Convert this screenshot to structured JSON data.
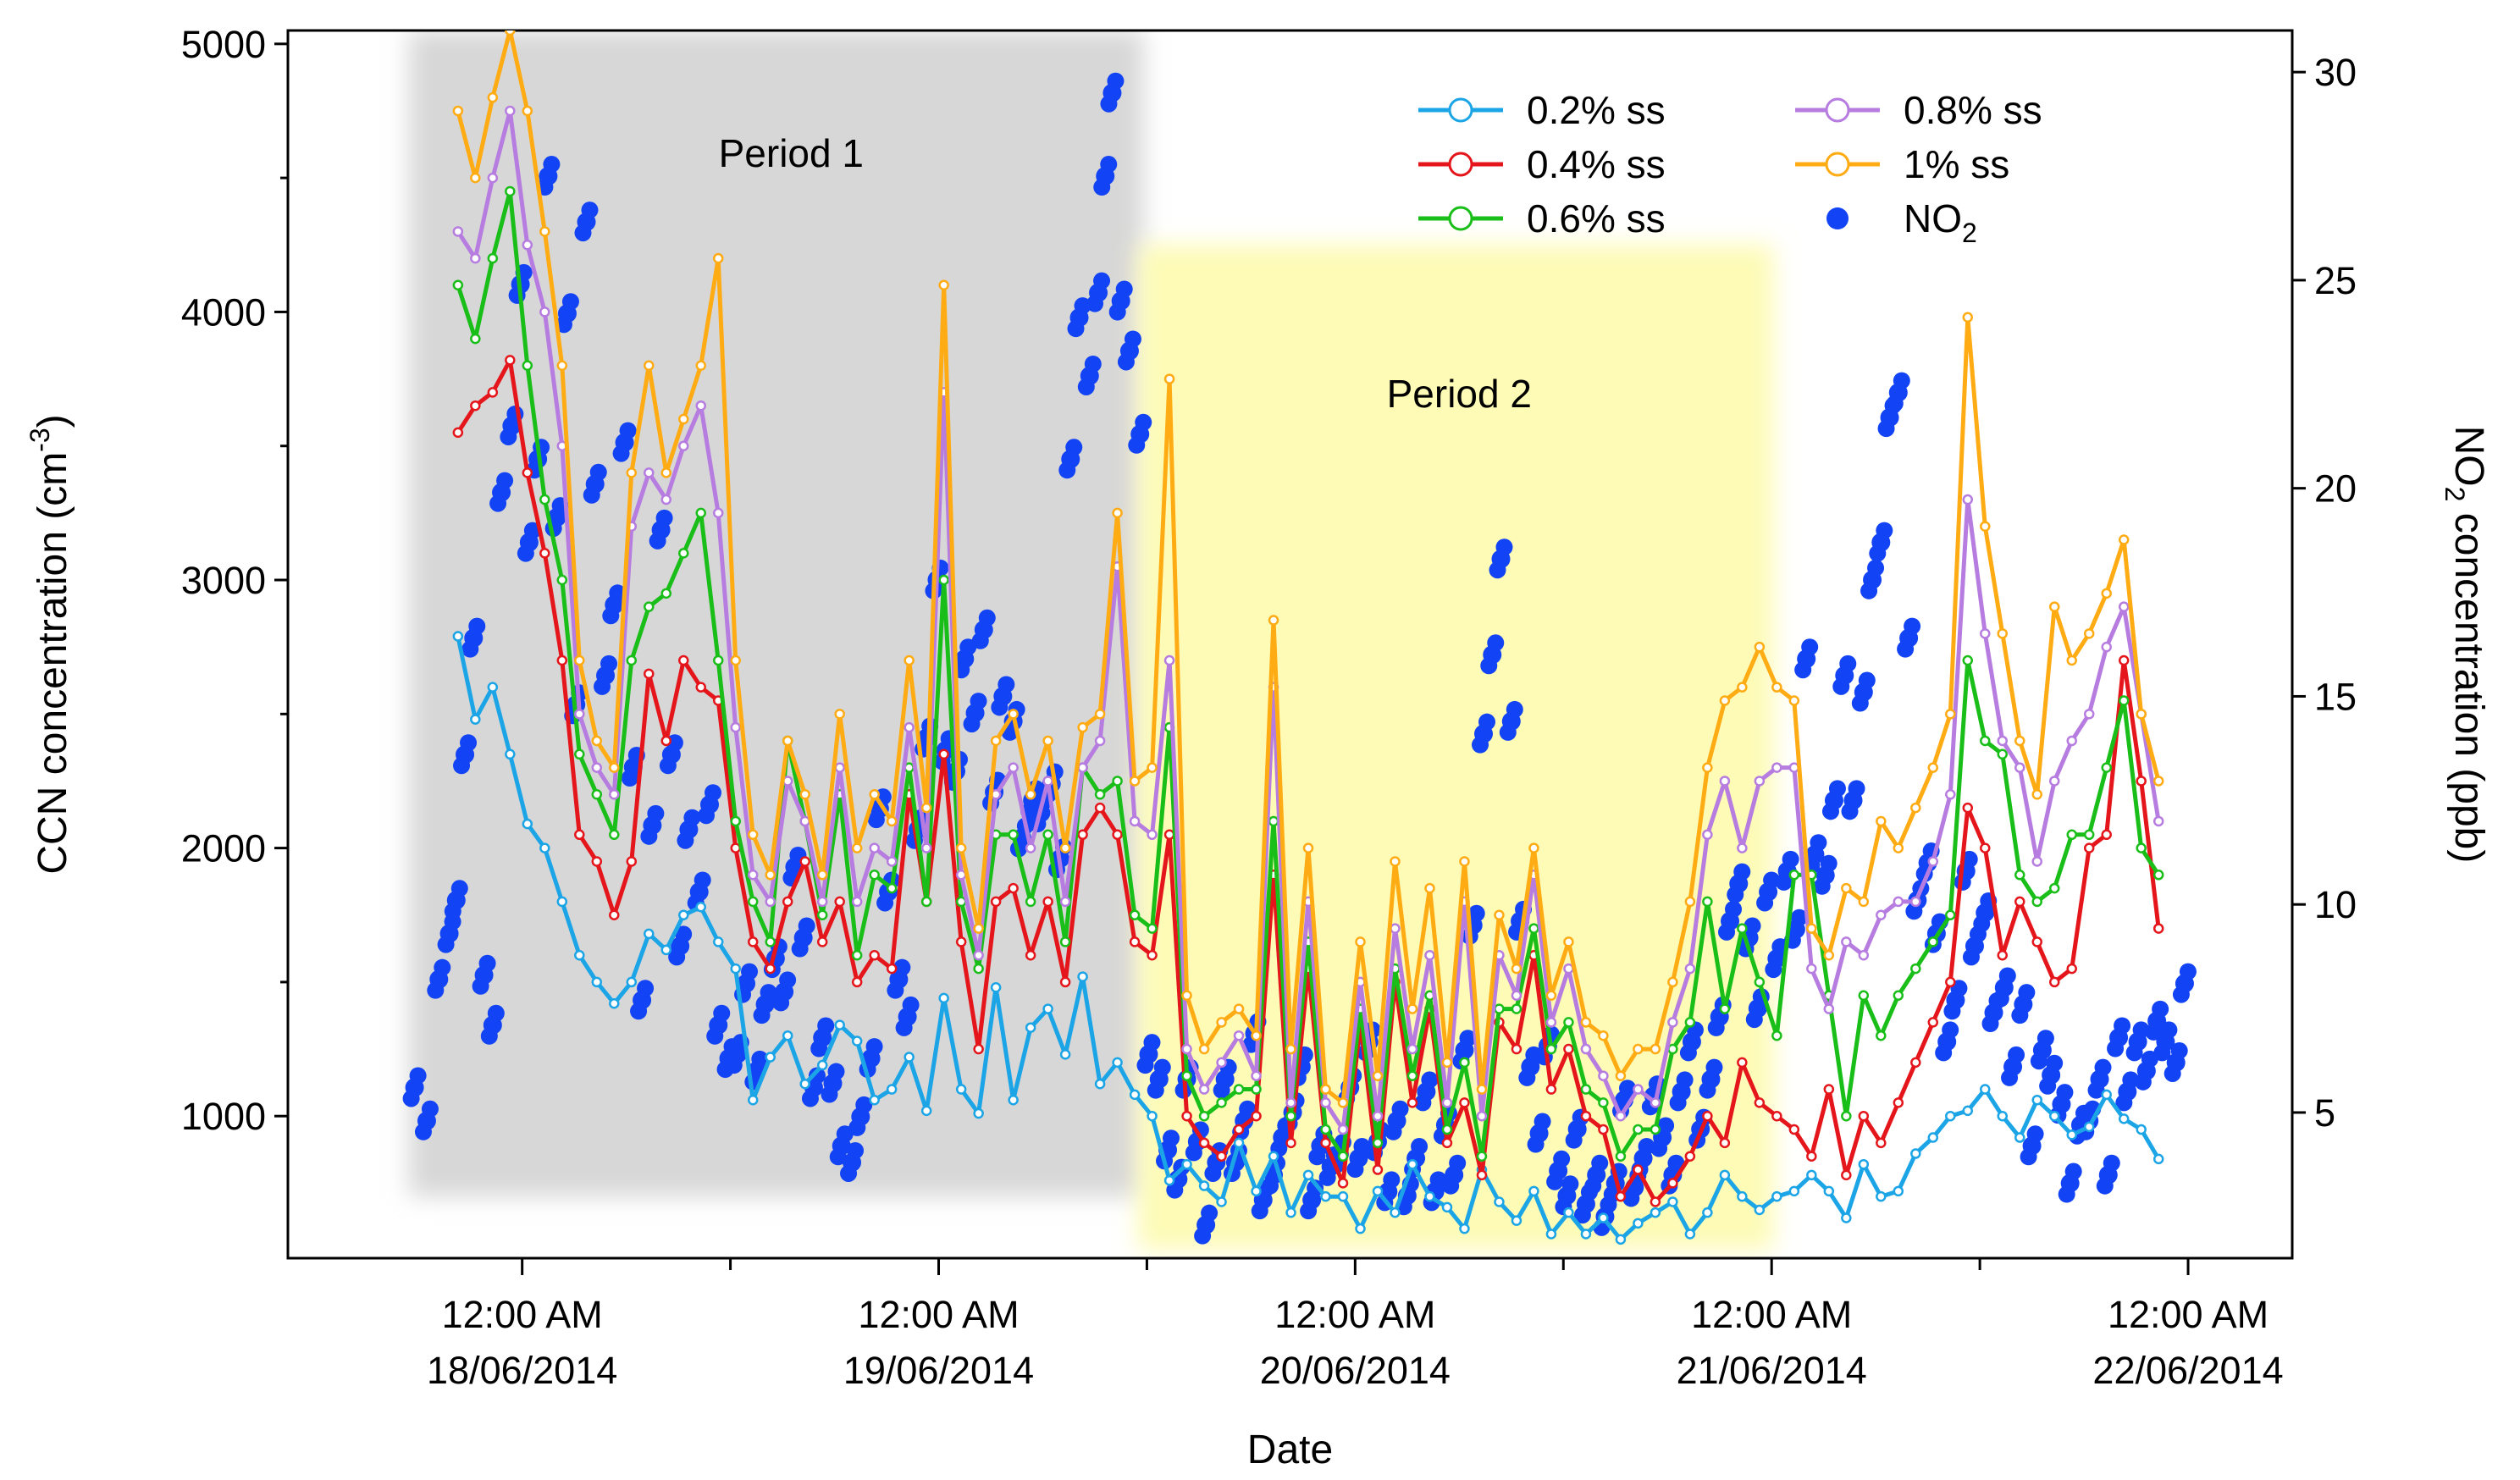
{
  "chart_data": {
    "type": "line",
    "xlabel": "Date",
    "ylabel_left_prefix": "CCN concentration (cm",
    "ylabel_left_sup": "-3",
    "ylabel_left_suffix": ")",
    "ylabel_right_prefix": "NO",
    "ylabel_right_sub": "2",
    "ylabel_right_suffix": " concentration (ppb)",
    "x_unit": "hours from 12:00 AM 18/06/2014",
    "xlim": [
      -13.5,
      102
    ],
    "ylim_left": [
      470,
      5050
    ],
    "ylim_right": [
      1.5,
      31
    ],
    "x_ticks": [
      {
        "x": 0,
        "label1": "12:00 AM",
        "label2": "18/06/2014"
      },
      {
        "x": 24,
        "label1": "12:00 AM",
        "label2": "19/06/2014"
      },
      {
        "x": 48,
        "label1": "12:00 AM",
        "label2": "20/06/2014"
      },
      {
        "x": 72,
        "label1": "12:00 AM",
        "label2": "21/06/2014"
      },
      {
        "x": 96,
        "label1": "12:00 AM",
        "label2": "22/06/2014"
      }
    ],
    "x_minor_ticks": [
      12,
      36,
      60,
      84
    ],
    "y_left_ticks": [
      1000,
      2000,
      3000,
      4000,
      5000
    ],
    "y_right_ticks": [
      5,
      10,
      15,
      20,
      25,
      30
    ],
    "periods": [
      {
        "label": "Period 1",
        "x_start": -6.5,
        "x_end": 35.8,
        "y_top": 5050,
        "y_bottom": 700,
        "color": "#d7d7d7"
      },
      {
        "label": "Period 2",
        "x_start": 35.5,
        "x_end": 72.1,
        "y_top": 4250,
        "y_bottom": 500,
        "color": "#fdfbb5"
      }
    ],
    "legend": [
      {
        "label": "0.2% ss",
        "color": "#1ca5e6",
        "kind": "line"
      },
      {
        "label": "0.4% ss",
        "color": "#e5161b",
        "kind": "line"
      },
      {
        "label": "0.6% ss",
        "color": "#19be19",
        "kind": "line"
      },
      {
        "label": "0.8% ss",
        "color": "#b67ce0",
        "kind": "line"
      },
      {
        "label": "1% ss",
        "color": "#ffab13",
        "kind": "line"
      },
      {
        "label": "NO",
        "label_sub": "2",
        "color": "#1243f5",
        "kind": "marker"
      }
    ],
    "x": [
      -3.7,
      -2.7,
      -1.7,
      -0.7,
      0.3,
      1.3,
      2.3,
      3.3,
      4.3,
      5.3,
      6.3,
      7.3,
      8.3,
      9.3,
      10.3,
      11.3,
      12.3,
      13.3,
      14.3,
      15.3,
      16.3,
      17.3,
      18.3,
      19.3,
      20.3,
      21.3,
      22.3,
      23.3,
      24.3,
      25.3,
      26.3,
      27.3,
      28.3,
      29.3,
      30.3,
      31.3,
      32.3,
      33.3,
      34.3,
      35.3,
      36.3,
      37.3,
      38.3,
      39.3,
      40.3,
      41.3,
      42.3,
      43.3,
      44.3,
      45.3,
      46.3,
      47.3,
      48.3,
      49.3,
      50.3,
      51.3,
      52.3,
      53.3,
      54.3,
      55.3,
      56.3,
      57.3,
      58.3,
      59.3,
      60.3,
      61.3,
      62.3,
      63.3,
      64.3,
      65.3,
      66.3,
      67.3,
      68.3,
      69.3,
      70.3,
      71.3,
      72.3,
      73.3,
      74.3,
      75.3,
      76.3,
      77.3,
      78.3,
      79.3,
      80.3,
      81.3,
      82.3,
      83.3,
      84.3,
      85.3,
      86.3,
      87.3,
      88.3,
      89.3,
      90.3,
      91.3,
      92.3,
      93.3,
      94.3
    ],
    "series": [
      {
        "name": "0.2% ss",
        "color": "#1ca5e6",
        "values": [
          2790,
          2480,
          2600,
          2350,
          2090,
          2000,
          1800,
          1600,
          1500,
          1420,
          1500,
          1680,
          1620,
          1750,
          1780,
          1650,
          1550,
          1060,
          1220,
          1300,
          1120,
          1190,
          1340,
          1280,
          1060,
          1100,
          1220,
          1020,
          1440,
          1100,
          1010,
          1480,
          1060,
          1330,
          1400,
          1230,
          1520,
          1120,
          1200,
          1080,
          1000,
          760,
          820,
          740,
          680,
          900,
          720,
          850,
          640,
          780,
          700,
          700,
          580,
          720,
          640,
          820,
          700,
          660,
          580,
          800,
          680,
          610,
          720,
          560,
          640,
          560,
          620,
          540,
          600,
          640,
          680,
          560,
          640,
          780,
          700,
          650,
          700,
          720,
          780,
          720,
          620,
          820,
          700,
          720,
          860,
          920,
          1000,
          1020,
          1100,
          1000,
          920,
          1060,
          1000,
          930,
          960,
          1080,
          990,
          950,
          840
        ]
      },
      {
        "name": "0.4% ss",
        "color": "#e5161b",
        "values": [
          3550,
          3650,
          3700,
          3820,
          3400,
          3100,
          2700,
          2050,
          1950,
          1750,
          1950,
          2650,
          2400,
          2700,
          2600,
          2550,
          2000,
          1650,
          1550,
          1800,
          1950,
          1650,
          1800,
          1500,
          1600,
          1550,
          2200,
          1800,
          2350,
          1650,
          1250,
          1800,
          1850,
          1600,
          1800,
          1500,
          2050,
          2150,
          2050,
          1650,
          1600,
          2050,
          1000,
          900,
          850,
          950,
          1000,
          1900,
          900,
          1550,
          900,
          750,
          1350,
          800,
          1500,
          1050,
          1400,
          900,
          1050,
          780,
          1350,
          1250,
          1600,
          1100,
          1250,
          1000,
          950,
          700,
          800,
          680,
          750,
          850,
          1000,
          900,
          1200,
          1050,
          1000,
          950,
          850,
          1100,
          780,
          1000,
          900,
          1050,
          1200,
          1350,
          1500,
          2150,
          2000,
          1600,
          1800,
          1650,
          1500,
          1550,
          2000,
          2050,
          2700,
          2250,
          1700
        ]
      },
      {
        "name": "0.6% ss",
        "color": "#19be19",
        "values": [
          4100,
          3900,
          4200,
          4450,
          3800,
          3300,
          3000,
          2350,
          2200,
          2050,
          2700,
          2900,
          2950,
          3100,
          3250,
          2700,
          2100,
          1800,
          1650,
          2400,
          2100,
          1750,
          2200,
          1600,
          1900,
          1850,
          2300,
          1800,
          3000,
          1800,
          1550,
          2050,
          2050,
          1800,
          2050,
          1650,
          2300,
          2200,
          2250,
          1750,
          1700,
          2450,
          1150,
          1000,
          1050,
          1100,
          1100,
          2100,
          1000,
          1650,
          950,
          850,
          1400,
          900,
          1550,
          1150,
          1450,
          950,
          1200,
          850,
          1400,
          1400,
          1700,
          1250,
          1350,
          1100,
          1050,
          850,
          950,
          950,
          1250,
          1350,
          1800,
          1400,
          1700,
          1500,
          1300,
          1900,
          1900,
          1450,
          1000,
          1450,
          1300,
          1450,
          1550,
          1650,
          1750,
          2700,
          2400,
          2350,
          1900,
          1800,
          1850,
          2050,
          2050,
          2300,
          2550,
          2000,
          1900
        ]
      },
      {
        "name": "0.8% ss",
        "color": "#b67ce0",
        "values": [
          4300,
          4200,
          4500,
          4750,
          4250,
          4000,
          3500,
          2500,
          2300,
          2200,
          3200,
          3400,
          3300,
          3500,
          3650,
          3250,
          2450,
          1900,
          1800,
          2250,
          2100,
          1800,
          2300,
          1800,
          2000,
          1950,
          2450,
          2000,
          3700,
          1900,
          1600,
          2200,
          2300,
          2000,
          2250,
          1800,
          2300,
          2400,
          3050,
          2100,
          2050,
          2700,
          1250,
          1100,
          1200,
          1300,
          1150,
          2600,
          1050,
          1800,
          1050,
          950,
          1500,
          1000,
          1700,
          1250,
          1600,
          1050,
          1800,
          1000,
          1600,
          1450,
          1900,
          1350,
          1550,
          1250,
          1150,
          1000,
          1100,
          1050,
          1350,
          1550,
          2050,
          2250,
          2000,
          2250,
          2300,
          2300,
          1550,
          1400,
          1650,
          1600,
          1750,
          1800,
          1800,
          1950,
          2200,
          3300,
          2800,
          2400,
          2300,
          1950,
          2250,
          2400,
          2500,
          2750,
          2900,
          2500,
          2100
        ]
      },
      {
        "name": "1% ss",
        "color": "#ffab13",
        "values": [
          4750,
          4500,
          4800,
          5050,
          4750,
          4300,
          3800,
          2700,
          2400,
          2300,
          3400,
          3800,
          3400,
          3600,
          3800,
          4200,
          2700,
          2050,
          1900,
          2400,
          2200,
          1900,
          2500,
          2000,
          2200,
          2100,
          2700,
          2150,
          4100,
          2000,
          1700,
          2400,
          2500,
          2200,
          2400,
          2000,
          2450,
          2500,
          3250,
          2250,
          2300,
          3750,
          1450,
          1250,
          1350,
          1400,
          1300,
          2850,
          1250,
          2000,
          1100,
          1050,
          1650,
          1150,
          1950,
          1400,
          1850,
          1200,
          1950,
          1100,
          1750,
          1550,
          2000,
          1450,
          1650,
          1350,
          1300,
          1150,
          1250,
          1250,
          1500,
          1800,
          2300,
          2550,
          2600,
          2750,
          2600,
          2550,
          1700,
          1600,
          1850,
          1800,
          2100,
          2000,
          2150,
          2300,
          2500,
          3980,
          3200,
          2800,
          2400,
          2200,
          2900,
          2700,
          2800,
          2950,
          3150,
          2500,
          2250
        ]
      }
    ],
    "no2_points": [
      [
        -6.2,
        5.6
      ],
      [
        -5.5,
        4.8
      ],
      [
        -4.8,
        8.2
      ],
      [
        -4.2,
        9.3
      ],
      [
        -3.8,
        10.1
      ],
      [
        -3.3,
        13.6
      ],
      [
        -2.8,
        16.4
      ],
      [
        -2.2,
        8.3
      ],
      [
        -1.7,
        7.1
      ],
      [
        -1.2,
        19.9
      ],
      [
        -0.6,
        21.5
      ],
      [
        -0.1,
        24.9
      ],
      [
        0.4,
        18.7
      ],
      [
        0.9,
        20.7
      ],
      [
        1.5,
        27.5
      ],
      [
        2.0,
        19.3
      ],
      [
        2.6,
        24.2
      ],
      [
        3.1,
        14.8
      ],
      [
        3.7,
        26.4
      ],
      [
        4.2,
        20.1
      ],
      [
        4.8,
        15.5
      ],
      [
        5.3,
        17.2
      ],
      [
        5.9,
        21.1
      ],
      [
        6.4,
        13.3
      ],
      [
        6.9,
        7.7
      ],
      [
        7.5,
        11.9
      ],
      [
        8.0,
        19.0
      ],
      [
        8.6,
        13.6
      ],
      [
        9.1,
        9.0
      ],
      [
        9.6,
        11.8
      ],
      [
        10.2,
        10.3
      ],
      [
        10.8,
        12.4
      ],
      [
        11.3,
        7.1
      ],
      [
        11.9,
        6.3
      ],
      [
        12.4,
        6.4
      ],
      [
        12.9,
        8.1
      ],
      [
        13.5,
        6.0
      ],
      [
        14.0,
        7.6
      ],
      [
        14.6,
        8.7
      ],
      [
        15.1,
        7.9
      ],
      [
        15.7,
        10.9
      ],
      [
        16.2,
        9.2
      ],
      [
        16.8,
        5.6
      ],
      [
        17.3,
        6.8
      ],
      [
        17.9,
        5.7
      ],
      [
        18.4,
        4.2
      ],
      [
        19.0,
        3.8
      ],
      [
        19.5,
        4.9
      ],
      [
        20.1,
        6.3
      ],
      [
        20.6,
        12.3
      ],
      [
        21.1,
        10.3
      ],
      [
        21.7,
        8.2
      ],
      [
        22.2,
        7.3
      ],
      [
        22.8,
        11.8
      ],
      [
        23.3,
        14.0
      ],
      [
        23.9,
        17.8
      ],
      [
        24.4,
        13.7
      ],
      [
        25.0,
        13.2
      ],
      [
        25.5,
        15.9
      ],
      [
        26.1,
        14.6
      ],
      [
        26.6,
        16.6
      ],
      [
        27.2,
        12.7
      ],
      [
        27.7,
        15.0
      ],
      [
        28.3,
        14.4
      ],
      [
        28.8,
        11.6
      ],
      [
        29.4,
        12.5
      ],
      [
        29.9,
        12.2
      ],
      [
        30.5,
        12.9
      ],
      [
        31.0,
        11.1
      ],
      [
        31.6,
        20.7
      ],
      [
        32.1,
        24.1
      ],
      [
        32.7,
        22.7
      ],
      [
        33.2,
        24.7
      ],
      [
        33.6,
        27.5
      ],
      [
        34.0,
        29.5
      ],
      [
        34.5,
        24.5
      ],
      [
        35.0,
        23.3
      ],
      [
        35.6,
        21.3
      ],
      [
        36.1,
        6.4
      ],
      [
        36.7,
        5.8
      ],
      [
        37.2,
        4.1
      ],
      [
        37.8,
        3.4
      ],
      [
        38.3,
        5.8
      ],
      [
        38.9,
        4.3
      ],
      [
        39.4,
        2.3
      ],
      [
        40.0,
        3.8
      ],
      [
        40.5,
        5.8
      ],
      [
        41.1,
        3.8
      ],
      [
        41.6,
        4.8
      ],
      [
        42.2,
        6.9
      ],
      [
        42.7,
        2.9
      ],
      [
        43.3,
        3.5
      ],
      [
        43.8,
        4.4
      ],
      [
        44.4,
        5.0
      ],
      [
        44.9,
        6.1
      ],
      [
        45.5,
        2.9
      ],
      [
        46.0,
        4.2
      ],
      [
        46.6,
        3.7
      ],
      [
        47.1,
        4.0
      ],
      [
        47.7,
        5.6
      ],
      [
        48.2,
        3.9
      ],
      [
        48.8,
        6.7
      ],
      [
        49.3,
        4.3
      ],
      [
        49.9,
        3.1
      ],
      [
        50.4,
        4.8
      ],
      [
        51.0,
        3.0
      ],
      [
        51.5,
        3.9
      ],
      [
        52.1,
        5.5
      ],
      [
        52.6,
        3.1
      ],
      [
        53.2,
        4.7
      ],
      [
        53.7,
        3.5
      ],
      [
        54.3,
        6.5
      ],
      [
        54.8,
        9.5
      ],
      [
        55.4,
        14.1
      ],
      [
        55.9,
        16.0
      ],
      [
        56.4,
        18.3
      ],
      [
        57.0,
        14.4
      ],
      [
        57.5,
        9.6
      ],
      [
        58.1,
        6.1
      ],
      [
        58.6,
        4.5
      ],
      [
        59.1,
        6.6
      ],
      [
        59.7,
        3.6
      ],
      [
        60.2,
        3.0
      ],
      [
        60.8,
        4.6
      ],
      [
        61.3,
        2.8
      ],
      [
        61.9,
        3.5
      ],
      [
        62.4,
        2.5
      ],
      [
        63.0,
        3.3
      ],
      [
        63.5,
        5.3
      ],
      [
        64.1,
        3.2
      ],
      [
        64.6,
        3.9
      ],
      [
        65.2,
        5.4
      ],
      [
        65.7,
        4.4
      ],
      [
        66.3,
        3.5
      ],
      [
        66.8,
        5.5
      ],
      [
        67.4,
        6.7
      ],
      [
        67.9,
        4.6
      ],
      [
        68.5,
        5.8
      ],
      [
        69.0,
        7.3
      ],
      [
        69.6,
        9.6
      ],
      [
        70.1,
        10.5
      ],
      [
        70.7,
        9.2
      ],
      [
        71.2,
        7.5
      ],
      [
        71.8,
        10.3
      ],
      [
        72.3,
        8.7
      ],
      [
        72.9,
        10.8
      ],
      [
        73.4,
        9.4
      ],
      [
        74.0,
        15.9
      ],
      [
        74.5,
        11.2
      ],
      [
        75.1,
        10.7
      ],
      [
        75.6,
        12.5
      ],
      [
        76.2,
        15.5
      ],
      [
        76.7,
        12.5
      ],
      [
        77.3,
        15.1
      ],
      [
        77.8,
        17.8
      ],
      [
        78.3,
        18.7
      ],
      [
        78.8,
        21.7
      ],
      [
        79.3,
        22.3
      ],
      [
        79.9,
        16.4
      ],
      [
        80.4,
        10.1
      ],
      [
        81.0,
        11.0
      ],
      [
        81.5,
        9.3
      ],
      [
        82.1,
        6.7
      ],
      [
        82.6,
        7.7
      ],
      [
        83.2,
        10.8
      ],
      [
        83.7,
        9.0
      ],
      [
        84.3,
        9.8
      ],
      [
        84.8,
        7.4
      ],
      [
        85.4,
        8.0
      ],
      [
        85.9,
        6.1
      ],
      [
        86.5,
        7.6
      ],
      [
        87.0,
        4.2
      ],
      [
        87.6,
        6.5
      ],
      [
        88.1,
        5.9
      ],
      [
        88.7,
        5.2
      ],
      [
        89.2,
        3.3
      ],
      [
        89.8,
        4.7
      ],
      [
        90.3,
        4.8
      ],
      [
        90.9,
        5.8
      ],
      [
        91.4,
        3.5
      ],
      [
        92.0,
        6.8
      ],
      [
        92.5,
        5.5
      ],
      [
        93.1,
        6.7
      ],
      [
        93.6,
        6.0
      ],
      [
        94.2,
        7.2
      ],
      [
        94.7,
        6.7
      ],
      [
        95.3,
        6.2
      ],
      [
        95.8,
        8.1
      ]
    ]
  }
}
